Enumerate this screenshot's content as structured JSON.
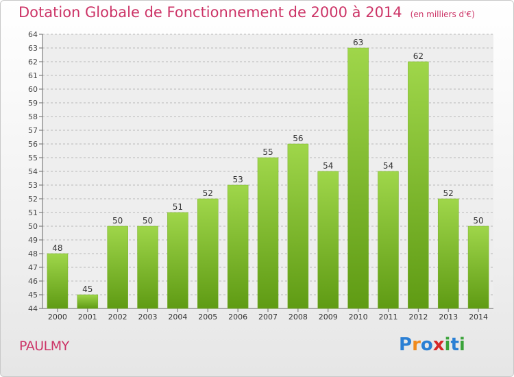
{
  "title": "Dotation Globale de Fonctionnement de 2000 à 2014",
  "subtitle": "(en milliers d'€)",
  "commune": "PAULMY",
  "logo": {
    "letters": [
      "P",
      "r",
      "o",
      "x",
      "i",
      "t",
      "i"
    ],
    "colors": [
      "#2a7fd4",
      "#f08a1c",
      "#2a7fd4",
      "#d62828",
      "#3aa33a",
      "#2a7fd4",
      "#3aa33a"
    ]
  },
  "colors": {
    "bar_top": "#9fd64a",
    "bar_bottom": "#5f9b14",
    "accent": "#cc3366"
  },
  "chart_data": {
    "type": "bar",
    "categories": [
      "2000",
      "2001",
      "2002",
      "2003",
      "2004",
      "2005",
      "2006",
      "2007",
      "2008",
      "2009",
      "2010",
      "2011",
      "2012",
      "2013",
      "2014"
    ],
    "values": [
      48,
      45,
      50,
      50,
      51,
      52,
      53,
      55,
      56,
      54,
      63,
      54,
      62,
      52,
      50
    ],
    "ylim": [
      44,
      64
    ],
    "yticks": [
      44,
      45,
      46,
      47,
      48,
      49,
      50,
      51,
      52,
      53,
      54,
      55,
      56,
      57,
      58,
      59,
      60,
      61,
      62,
      63,
      64
    ],
    "grid": true
  }
}
